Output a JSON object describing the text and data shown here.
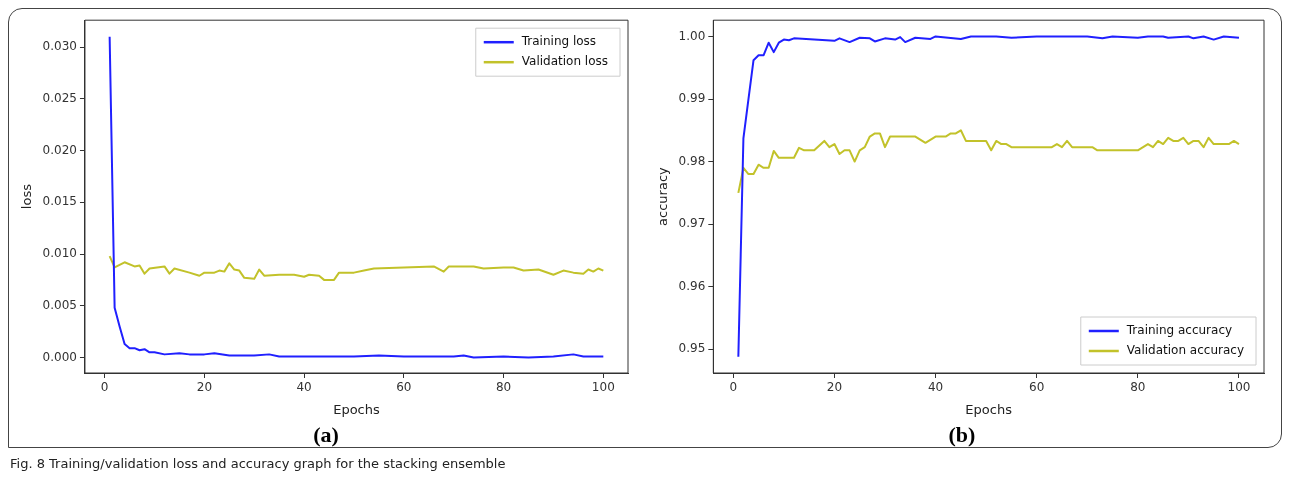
{
  "chart_data": [
    {
      "type": "line",
      "xlabel": "Epochs",
      "ylabel": "loss",
      "legend": "top right",
      "annotations": [
        "(a)"
      ],
      "xlim": [
        -3.95,
        104.95
      ],
      "xticks": [
        0,
        20,
        40,
        60,
        80,
        100
      ],
      "ylim": [
        -0.0015,
        0.0326
      ],
      "yticks": [
        {
          "value": 0,
          "label": "0.000"
        },
        {
          "value": 0.005,
          "label": "0.005"
        },
        {
          "value": 0.01,
          "label": "0.010"
        },
        {
          "value": 0.015,
          "label": "0.015"
        },
        {
          "value": 0.02,
          "label": "0.020"
        },
        {
          "value": 0.025,
          "label": "0.025"
        },
        {
          "value": 0.03,
          "label": "0.030"
        }
      ],
      "series": [
        {
          "name": "Training loss",
          "color": "#2020ff",
          "x": [
            1,
            2,
            3,
            4,
            5,
            6,
            7,
            8,
            9,
            10,
            12,
            15,
            17,
            20,
            22,
            25,
            27,
            30,
            33,
            35,
            40,
            45,
            50,
            55,
            60,
            70,
            72,
            74,
            80,
            85,
            90,
            94,
            96,
            100
          ],
          "values": [
            0.031,
            0.0048,
            0.003,
            0.0013,
            0.0009,
            0.0009,
            0.0007,
            0.0008,
            0.0005,
            0.0005,
            0.0003,
            0.0004,
            0.0003,
            0.0003,
            0.0004,
            0.0002,
            0.0002,
            0.0002,
            0.0003,
            0.0001,
            0.0001,
            0.0001,
            0.0001,
            0.0002,
            0.0001,
            0.0001,
            0.0002,
            0.0,
            0.0001,
            0.0,
            0.0001,
            0.0003,
            0.0001,
            0.0001
          ]
        },
        {
          "name": "Validation loss",
          "color": "#c2c22a",
          "x": [
            1,
            2,
            4,
            6,
            7,
            8,
            9,
            12,
            13,
            14,
            17,
            19,
            20,
            22,
            23,
            24,
            25,
            26,
            27,
            28,
            30,
            31,
            32,
            35,
            38,
            40,
            41,
            43,
            44,
            46,
            47,
            50,
            52,
            54,
            60,
            66,
            68,
            69,
            74,
            76,
            80,
            82,
            84,
            87,
            90,
            92,
            94,
            96,
            97,
            98,
            99,
            100
          ],
          "values": [
            0.0098,
            0.0087,
            0.0092,
            0.0088,
            0.0089,
            0.0081,
            0.0086,
            0.0088,
            0.0081,
            0.0086,
            0.0082,
            0.0079,
            0.0082,
            0.0082,
            0.0084,
            0.0083,
            0.0091,
            0.0085,
            0.0084,
            0.0077,
            0.0076,
            0.0085,
            0.0079,
            0.008,
            0.008,
            0.0078,
            0.008,
            0.0079,
            0.0075,
            0.0075,
            0.0082,
            0.0082,
            0.0084,
            0.0086,
            0.0087,
            0.0088,
            0.0083,
            0.0088,
            0.0088,
            0.0086,
            0.0087,
            0.0087,
            0.0084,
            0.0085,
            0.008,
            0.0084,
            0.0082,
            0.0081,
            0.0085,
            0.0083,
            0.0086,
            0.0084
          ]
        }
      ]
    },
    {
      "type": "line",
      "xlabel": "Epochs",
      "ylabel": "accuracy",
      "legend": "bottom right",
      "annotations": [
        "(b)",
        "Fig. 8 Training/validation loss and accuracy graph for the stacking ensemble"
      ],
      "xlim": [
        -3.95,
        104.95
      ],
      "xticks": [
        0,
        20,
        40,
        60,
        80,
        100
      ],
      "ylim": [
        0.9462,
        1.0026
      ],
      "yticks": [
        0.95,
        0.96,
        0.97,
        0.98,
        0.99,
        {
          "value": 1,
          "label": "1.00"
        }
      ],
      "series": [
        {
          "name": "Training accuracy",
          "color": "#2020ff",
          "x": [
            1,
            2,
            3,
            4,
            5,
            6,
            7,
            8,
            9,
            10,
            11,
            12,
            20,
            21,
            23,
            25,
            27,
            28,
            30,
            32,
            33,
            34,
            36,
            39,
            40,
            45,
            47,
            52,
            55,
            60,
            70,
            73,
            75,
            80,
            82,
            85,
            86,
            90,
            91,
            93,
            95,
            97,
            100
          ],
          "values": [
            0.9488,
            0.9837,
            0.99,
            0.9962,
            0.997,
            0.997,
            0.999,
            0.9975,
            0.999,
            0.9995,
            0.9994,
            0.9997,
            0.9993,
            0.9997,
            0.9991,
            0.9998,
            0.9997,
            0.9992,
            0.9997,
            0.9995,
            0.9999,
            0.9991,
            0.9998,
            0.9996,
            1.0,
            0.9996,
            1.0,
            1.0,
            0.9998,
            1.0,
            1.0,
            0.9997,
            1.0,
            0.9998,
            1.0,
            1.0,
            0.9998,
            1.0,
            0.9997,
            1.0,
            0.9995,
            1.0,
            0.9998
          ]
        },
        {
          "name": "Validation accuracy",
          "color": "#c2c22a",
          "x": [
            1,
            2,
            3,
            4,
            5,
            6,
            7,
            8,
            9,
            12,
            13,
            14,
            16,
            18,
            19,
            20,
            21,
            22,
            23,
            24,
            25,
            26,
            27,
            28,
            29,
            30,
            31,
            36,
            38,
            40,
            42,
            43,
            44,
            45,
            46,
            50,
            51,
            52,
            53,
            54,
            55,
            63,
            64,
            65,
            66,
            67,
            71,
            72,
            80,
            82,
            83,
            84,
            85,
            86,
            87,
            88,
            89,
            90,
            91,
            92,
            93,
            94,
            95,
            98,
            99,
            100
          ],
          "values": [
            0.975,
            0.979,
            0.978,
            0.978,
            0.9795,
            0.979,
            0.979,
            0.9817,
            0.9806,
            0.9806,
            0.9822,
            0.9818,
            0.9818,
            0.9833,
            0.9823,
            0.9828,
            0.9812,
            0.9818,
            0.9818,
            0.98,
            0.9818,
            0.9823,
            0.984,
            0.9845,
            0.9845,
            0.9823,
            0.984,
            0.984,
            0.983,
            0.984,
            0.984,
            0.9845,
            0.9845,
            0.985,
            0.9833,
            0.9833,
            0.9818,
            0.9833,
            0.9828,
            0.9828,
            0.9823,
            0.9823,
            0.9828,
            0.9823,
            0.9833,
            0.9823,
            0.9823,
            0.9818,
            0.9818,
            0.9828,
            0.9823,
            0.9833,
            0.9828,
            0.9838,
            0.9833,
            0.9833,
            0.9838,
            0.9828,
            0.9833,
            0.9833,
            0.9823,
            0.9838,
            0.9828,
            0.9828,
            0.9833,
            0.9828
          ]
        }
      ]
    }
  ]
}
